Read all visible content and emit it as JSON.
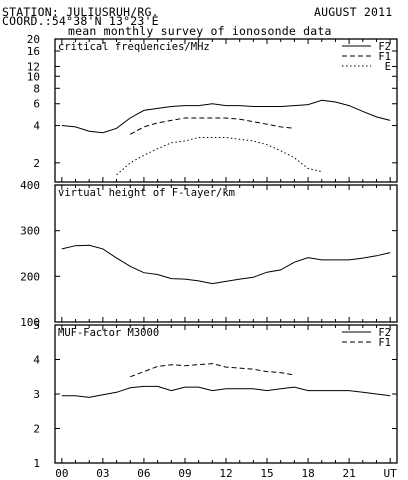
{
  "header": {
    "station": "STATION: JULIUSRUH/RG.",
    "month": "AUGUST 2011",
    "coord": "COORD.:54°38'N 13°23'E",
    "subtitle": "mean monthly survey of ionosonde data"
  },
  "chart_data": [
    {
      "type": "line",
      "title": "critical frequencies/MHz",
      "y_scale": "log",
      "ylim": [
        1.4,
        20
      ],
      "y_ticks": [
        2,
        4,
        6,
        8,
        10,
        12,
        16,
        20
      ],
      "xlim": [
        -0.5,
        24.5
      ],
      "grid": false,
      "legend_position": "top-right",
      "series": [
        {
          "name": "F2",
          "style": "solid",
          "x": [
            0,
            1,
            2,
            3,
            4,
            5,
            6,
            7,
            8,
            9,
            10,
            11,
            12,
            13,
            14,
            15,
            16,
            17,
            18,
            19,
            20,
            21,
            22,
            23,
            24
          ],
          "values": [
            4.0,
            3.9,
            3.6,
            3.5,
            3.8,
            4.6,
            5.3,
            5.5,
            5.7,
            5.8,
            5.8,
            6.0,
            5.8,
            5.8,
            5.7,
            5.7,
            5.7,
            5.8,
            5.9,
            6.4,
            6.2,
            5.8,
            5.2,
            4.7,
            4.4
          ]
        },
        {
          "name": "F1",
          "style": "dashed",
          "x": [
            5,
            6,
            7,
            8,
            9,
            10,
            11,
            12,
            13,
            14,
            15,
            16,
            17
          ],
          "values": [
            3.4,
            3.9,
            4.2,
            4.4,
            4.6,
            4.6,
            4.6,
            4.6,
            4.5,
            4.3,
            4.1,
            3.9,
            3.8
          ]
        },
        {
          "name": "E",
          "style": "dotted",
          "x": [
            4,
            5,
            6,
            7,
            8,
            9,
            10,
            11,
            12,
            13,
            14,
            15,
            16,
            17,
            18,
            19
          ],
          "values": [
            1.6,
            2.0,
            2.3,
            2.6,
            2.9,
            3.0,
            3.2,
            3.2,
            3.2,
            3.1,
            3.0,
            2.8,
            2.5,
            2.2,
            1.8,
            1.7
          ]
        }
      ]
    },
    {
      "type": "line",
      "title": "virtual height of F-layer/km",
      "ylim": [
        100,
        400
      ],
      "y_ticks": [
        100,
        200,
        300,
        400
      ],
      "xlim": [
        -0.5,
        24.5
      ],
      "grid": false,
      "series": [
        {
          "style": "solid",
          "x": [
            0,
            1,
            2,
            3,
            4,
            5,
            6,
            7,
            8,
            9,
            10,
            11,
            12,
            13,
            14,
            15,
            16,
            17,
            18,
            19,
            20,
            21,
            22,
            23,
            24
          ],
          "values": [
            260,
            267,
            268,
            260,
            240,
            222,
            208,
            204,
            195,
            194,
            190,
            184,
            189,
            194,
            198,
            209,
            214,
            231,
            241,
            236,
            236,
            236,
            240,
            245,
            252
          ]
        }
      ]
    },
    {
      "type": "line",
      "title": "MUF-Factor M3000",
      "ylim": [
        1,
        5
      ],
      "y_ticks": [
        1,
        2,
        3,
        4,
        5
      ],
      "xlim": [
        -0.5,
        24.5
      ],
      "grid": false,
      "legend_position": "top-right",
      "x_tick_labels": [
        "00",
        "03",
        "06",
        "09",
        "12",
        "15",
        "18",
        "21",
        "UT"
      ],
      "series": [
        {
          "name": "F2",
          "style": "solid",
          "x": [
            0,
            1,
            2,
            3,
            4,
            5,
            6,
            7,
            8,
            9,
            10,
            11,
            12,
            13,
            14,
            15,
            16,
            17,
            18,
            19,
            20,
            21,
            22,
            23,
            24
          ],
          "values": [
            2.95,
            2.95,
            2.9,
            2.98,
            3.05,
            3.18,
            3.22,
            3.22,
            3.1,
            3.2,
            3.2,
            3.1,
            3.15,
            3.15,
            3.15,
            3.1,
            3.15,
            3.2,
            3.1,
            3.1,
            3.1,
            3.1,
            3.05,
            3.0,
            2.95
          ]
        },
        {
          "name": "F1",
          "style": "dashed",
          "x": [
            5,
            6,
            7,
            8,
            9,
            10,
            11,
            12,
            13,
            14,
            15,
            16,
            17
          ],
          "values": [
            3.5,
            3.65,
            3.8,
            3.85,
            3.82,
            3.85,
            3.88,
            3.78,
            3.75,
            3.72,
            3.65,
            3.62,
            3.55
          ]
        }
      ]
    }
  ]
}
